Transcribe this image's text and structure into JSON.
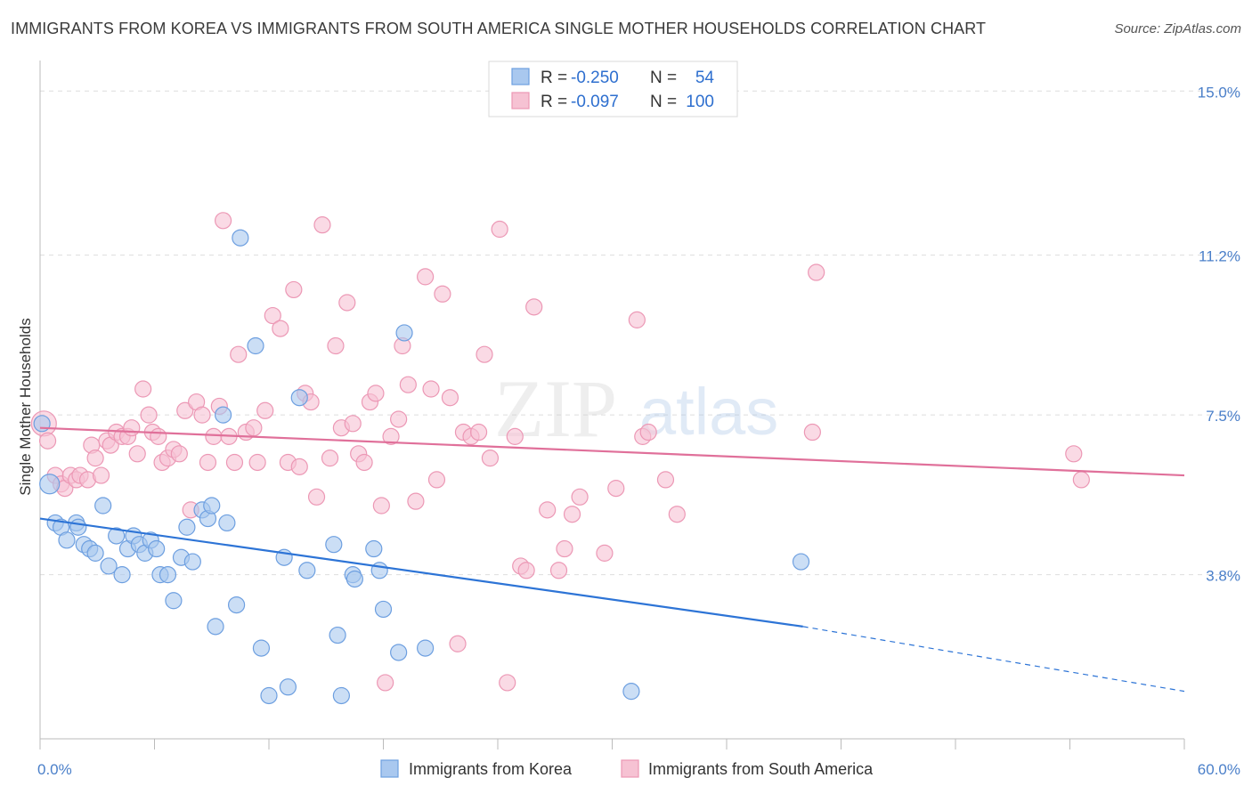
{
  "title": "IMMIGRANTS FROM KOREA VS IMMIGRANTS FROM SOUTH AMERICA SINGLE MOTHER HOUSEHOLDS CORRELATION CHART",
  "source": "Source: ZipAtlas.com",
  "watermark": {
    "zip": "ZIP",
    "atlas": "atlas"
  },
  "colors": {
    "korea_fill": "#a9c8ef",
    "korea_stroke": "#6d9fe0",
    "korea_line": "#2d74d6",
    "sa_fill": "#f6c2d3",
    "sa_stroke": "#ec98b5",
    "sa_line": "#e0709a",
    "tick_text": "#4a7fc9",
    "grid": "#dddddd"
  },
  "legend": {
    "rows": [
      {
        "r_label": "R = ",
        "r_value": "-0.250",
        "n_label": "N = ",
        "n_value": "54"
      },
      {
        "r_label": "R = ",
        "r_value": "-0.097",
        "n_label": "N = ",
        "n_value": "100"
      }
    ]
  },
  "chart_data": {
    "type": "scatter",
    "title": "IMMIGRANTS FROM KOREA VS IMMIGRANTS FROM SOUTH AMERICA SINGLE MOTHER HOUSEHOLDS CORRELATION CHART",
    "xlabel": "",
    "ylabel": "Single Mother Households",
    "xlim": [
      0,
      60
    ],
    "ylim": [
      0,
      15.5
    ],
    "x_tick_labels": [
      "0.0%",
      "60.0%"
    ],
    "y_ticks": [
      {
        "value": 3.8,
        "label": "3.8%"
      },
      {
        "value": 7.5,
        "label": "7.5%"
      },
      {
        "value": 11.2,
        "label": "11.2%"
      },
      {
        "value": 15.0,
        "label": "15.0%"
      }
    ],
    "grid": true,
    "legend_position": "top-center",
    "series": [
      {
        "name": "Immigrants from Korea",
        "r": -0.25,
        "n": 54,
        "trend": {
          "x0": 0,
          "y0": 5.1,
          "x1": 40,
          "y1": 2.6,
          "dash_to_x": 60,
          "dash_to_y": 1.1
        },
        "points": [
          [
            0.5,
            5.9
          ],
          [
            0.8,
            5.0
          ],
          [
            1.1,
            4.9
          ],
          [
            1.4,
            4.6
          ],
          [
            1.9,
            5.0
          ],
          [
            2.0,
            4.9
          ],
          [
            2.3,
            4.5
          ],
          [
            2.6,
            4.4
          ],
          [
            2.9,
            4.3
          ],
          [
            3.3,
            5.4
          ],
          [
            3.6,
            4.0
          ],
          [
            4.0,
            4.7
          ],
          [
            4.3,
            3.8
          ],
          [
            4.6,
            4.4
          ],
          [
            4.9,
            4.7
          ],
          [
            5.2,
            4.5
          ],
          [
            5.5,
            4.3
          ],
          [
            5.8,
            4.6
          ],
          [
            6.1,
            4.4
          ],
          [
            6.3,
            3.8
          ],
          [
            6.7,
            3.8
          ],
          [
            7.0,
            3.2
          ],
          [
            7.4,
            4.2
          ],
          [
            7.7,
            4.9
          ],
          [
            8.0,
            4.1
          ],
          [
            8.5,
            5.3
          ],
          [
            8.8,
            5.1
          ],
          [
            9.0,
            5.4
          ],
          [
            9.2,
            2.6
          ],
          [
            9.6,
            7.5
          ],
          [
            9.8,
            5.0
          ],
          [
            10.3,
            3.1
          ],
          [
            10.5,
            11.6
          ],
          [
            11.3,
            9.1
          ],
          [
            11.6,
            2.1
          ],
          [
            12.0,
            1.0
          ],
          [
            12.8,
            4.2
          ],
          [
            13.0,
            1.2
          ],
          [
            13.6,
            7.9
          ],
          [
            14.0,
            3.9
          ],
          [
            15.4,
            4.5
          ],
          [
            15.6,
            2.4
          ],
          [
            15.8,
            1.0
          ],
          [
            16.4,
            3.8
          ],
          [
            16.5,
            3.7
          ],
          [
            17.5,
            4.4
          ],
          [
            17.8,
            3.9
          ],
          [
            18.0,
            3.0
          ],
          [
            18.8,
            2.0
          ],
          [
            19.1,
            9.4
          ],
          [
            20.2,
            2.1
          ],
          [
            31.0,
            1.1
          ],
          [
            39.9,
            4.1
          ],
          [
            0.1,
            7.3
          ]
        ]
      },
      {
        "name": "Immigrants from South America",
        "r": -0.097,
        "n": 100,
        "trend": {
          "x0": 0,
          "y0": 7.2,
          "x1": 60,
          "y1": 6.1
        },
        "points": [
          [
            0.2,
            7.3
          ],
          [
            0.4,
            6.9
          ],
          [
            0.8,
            6.1
          ],
          [
            1.1,
            5.9
          ],
          [
            1.3,
            5.8
          ],
          [
            1.6,
            6.1
          ],
          [
            1.9,
            6.0
          ],
          [
            2.1,
            6.1
          ],
          [
            2.5,
            6.0
          ],
          [
            2.7,
            6.8
          ],
          [
            2.9,
            6.5
          ],
          [
            3.2,
            6.1
          ],
          [
            3.5,
            6.9
          ],
          [
            3.7,
            6.8
          ],
          [
            4.0,
            7.1
          ],
          [
            4.3,
            7.0
          ],
          [
            4.6,
            7.0
          ],
          [
            4.8,
            7.2
          ],
          [
            5.1,
            6.6
          ],
          [
            5.4,
            8.1
          ],
          [
            5.7,
            7.5
          ],
          [
            5.9,
            7.1
          ],
          [
            6.2,
            7.0
          ],
          [
            6.4,
            6.4
          ],
          [
            6.7,
            6.5
          ],
          [
            7.0,
            6.7
          ],
          [
            7.3,
            6.6
          ],
          [
            7.6,
            7.6
          ],
          [
            7.9,
            5.3
          ],
          [
            8.2,
            7.8
          ],
          [
            8.5,
            7.5
          ],
          [
            8.8,
            6.4
          ],
          [
            9.1,
            7.0
          ],
          [
            9.4,
            7.7
          ],
          [
            9.6,
            12.0
          ],
          [
            9.9,
            7.0
          ],
          [
            10.2,
            6.4
          ],
          [
            10.4,
            8.9
          ],
          [
            10.8,
            7.1
          ],
          [
            11.2,
            7.2
          ],
          [
            11.4,
            6.4
          ],
          [
            11.8,
            7.6
          ],
          [
            12.2,
            9.8
          ],
          [
            12.6,
            9.5
          ],
          [
            13.0,
            6.4
          ],
          [
            13.3,
            10.4
          ],
          [
            13.6,
            6.3
          ],
          [
            13.9,
            8.0
          ],
          [
            14.2,
            7.8
          ],
          [
            14.5,
            5.6
          ],
          [
            14.8,
            11.9
          ],
          [
            15.2,
            6.5
          ],
          [
            15.5,
            9.1
          ],
          [
            15.8,
            7.2
          ],
          [
            16.1,
            10.1
          ],
          [
            16.4,
            7.3
          ],
          [
            16.7,
            6.6
          ],
          [
            17.0,
            6.4
          ],
          [
            17.3,
            7.8
          ],
          [
            17.6,
            8.0
          ],
          [
            17.9,
            5.4
          ],
          [
            18.1,
            1.3
          ],
          [
            18.4,
            7.0
          ],
          [
            18.8,
            7.4
          ],
          [
            19.0,
            9.1
          ],
          [
            19.3,
            8.2
          ],
          [
            19.7,
            5.5
          ],
          [
            20.2,
            10.7
          ],
          [
            20.5,
            8.1
          ],
          [
            20.8,
            6.0
          ],
          [
            21.1,
            10.3
          ],
          [
            21.5,
            7.9
          ],
          [
            21.9,
            2.2
          ],
          [
            22.2,
            7.1
          ],
          [
            22.6,
            7.0
          ],
          [
            23.0,
            7.1
          ],
          [
            23.3,
            8.9
          ],
          [
            23.6,
            6.5
          ],
          [
            24.1,
            11.8
          ],
          [
            24.5,
            1.3
          ],
          [
            24.9,
            7.0
          ],
          [
            25.2,
            4.0
          ],
          [
            25.5,
            3.9
          ],
          [
            25.9,
            10.0
          ],
          [
            26.6,
            5.3
          ],
          [
            27.2,
            3.9
          ],
          [
            27.5,
            4.4
          ],
          [
            27.9,
            5.2
          ],
          [
            28.3,
            5.6
          ],
          [
            29.6,
            4.3
          ],
          [
            30.2,
            5.8
          ],
          [
            31.3,
            9.7
          ],
          [
            31.6,
            7.0
          ],
          [
            31.9,
            7.1
          ],
          [
            32.8,
            6.0
          ],
          [
            33.4,
            5.2
          ],
          [
            40.5,
            7.1
          ],
          [
            40.7,
            10.8
          ],
          [
            54.2,
            6.6
          ],
          [
            54.6,
            6.0
          ]
        ]
      }
    ]
  },
  "bottom_legend": [
    {
      "label": "Immigrants from Korea"
    },
    {
      "label": "Immigrants from South America"
    }
  ]
}
